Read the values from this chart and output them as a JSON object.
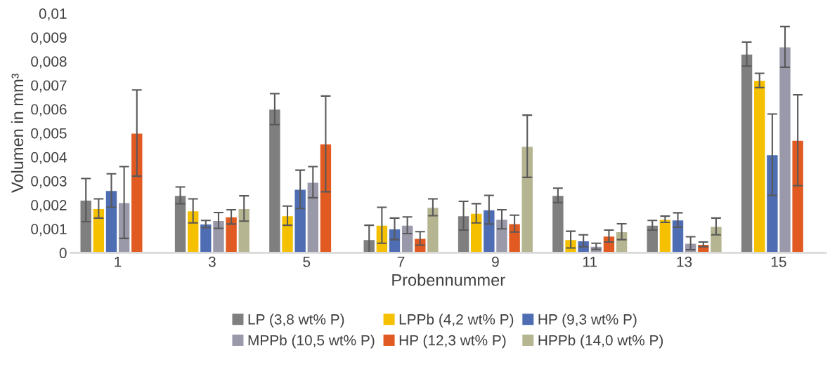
{
  "chart_data": {
    "type": "bar",
    "xlabel": "Probennummer",
    "ylabel": "Volumen in mm³",
    "categories": [
      "1",
      "3",
      "5",
      "7",
      "9",
      "11",
      "13",
      "15"
    ],
    "series": [
      {
        "name": "LP (3,8 wt% P)",
        "color": "#7f7f7f",
        "values": [
          0.0022,
          0.0024,
          0.006,
          0.00055,
          0.00155,
          0.0024,
          0.00115,
          0.0083
        ],
        "errors": [
          0.0009,
          0.00035,
          0.00065,
          0.0006,
          0.0006,
          0.0003,
          0.0002,
          0.0005
        ]
      },
      {
        "name": "LPPb (4,2 wt% P)",
        "color": "#f5c000",
        "values": [
          0.00185,
          0.00175,
          0.00155,
          0.00115,
          0.00165,
          0.00055,
          0.0014,
          0.0072
        ],
        "errors": [
          0.0004,
          0.0005,
          0.0004,
          0.00075,
          0.0004,
          0.00035,
          0.00013,
          0.0003
        ]
      },
      {
        "name": "HP (9,3 wt% P)",
        "color": "#4e6db2",
        "values": [
          0.0026,
          0.0012,
          0.00265,
          0.001,
          0.0018,
          0.0005,
          0.00137,
          0.0041
        ],
        "errors": [
          0.0007,
          0.00015,
          0.0008,
          0.00045,
          0.0006,
          0.00025,
          0.0003,
          0.0017
        ]
      },
      {
        "name": "MPPb (10,5 wt% P)",
        "color": "#9999aa",
        "values": [
          0.0021,
          0.00135,
          0.00295,
          0.00115,
          0.0014,
          0.00027,
          0.0004,
          0.0086
        ],
        "errors": [
          0.0015,
          0.00033,
          0.00065,
          0.00035,
          0.0004,
          0.00013,
          0.00027,
          0.00085
        ]
      },
      {
        "name": "HP (12,3 wt% P)",
        "color": "#e05a22",
        "values": [
          0.005,
          0.0015,
          0.00455,
          0.0006,
          0.00122,
          0.0007,
          0.00035,
          0.0047
        ],
        "errors": [
          0.0018,
          0.0003,
          0.002,
          0.00028,
          0.00035,
          0.00025,
          0.0001,
          0.0019
        ]
      },
      {
        "name": "HPPb (14,0 wt% P)",
        "color": "#b5b592",
        "values": [
          null,
          0.00185,
          null,
          0.0019,
          0.00445,
          0.00088,
          0.0011,
          null
        ],
        "errors": [
          null,
          0.00053,
          null,
          0.00035,
          0.0013,
          0.00033,
          0.00035,
          null
        ]
      }
    ],
    "ylim": [
      0,
      0.01
    ],
    "yticks": [
      {
        "value": 0,
        "label": "0"
      },
      {
        "value": 0.001,
        "label": "0,001"
      },
      {
        "value": 0.002,
        "label": "0,002"
      },
      {
        "value": 0.003,
        "label": "0,003"
      },
      {
        "value": 0.004,
        "label": "0,004"
      },
      {
        "value": 0.005,
        "label": "0,005"
      },
      {
        "value": 0.006,
        "label": "0,006"
      },
      {
        "value": 0.007,
        "label": "0,007"
      },
      {
        "value": 0.008,
        "label": "0,008"
      },
      {
        "value": 0.009,
        "label": "0,009"
      },
      {
        "value": 0.01,
        "label": "0,01"
      }
    ],
    "legend": "bottom",
    "grid": false
  }
}
